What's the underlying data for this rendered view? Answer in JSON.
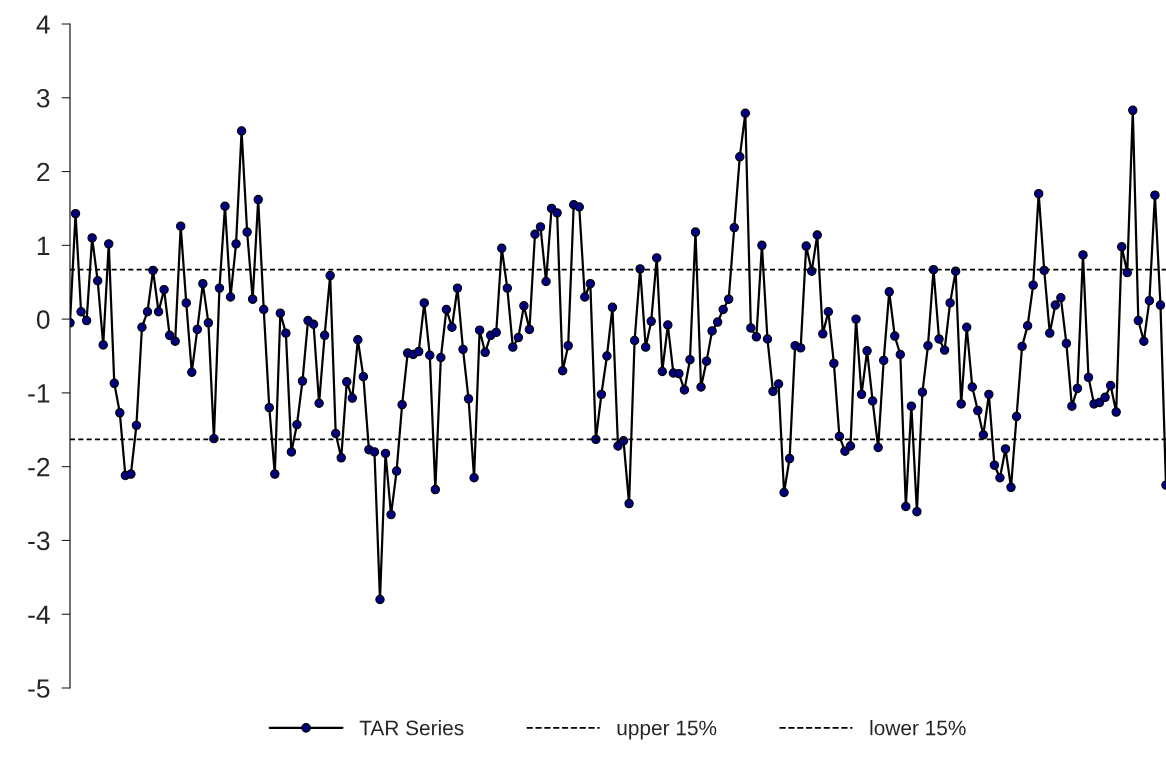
{
  "chart_data": {
    "type": "line",
    "categories": [
      null,
      null,
      null,
      null,
      null,
      null,
      null,
      null,
      null,
      null,
      null,
      null,
      null,
      null,
      null,
      null,
      null,
      null,
      null,
      null,
      null,
      null,
      null,
      null,
      null,
      null,
      null,
      null,
      null,
      null,
      null,
      null,
      null,
      null,
      null,
      null,
      null,
      null,
      null,
      null,
      null,
      null,
      null,
      null,
      null,
      null,
      null,
      null,
      null,
      null,
      null,
      null,
      null,
      null,
      null,
      null,
      null,
      null,
      null,
      null,
      null,
      null,
      null,
      null,
      null,
      null,
      null,
      null,
      null,
      null,
      null,
      null,
      null,
      null,
      null,
      null,
      null,
      null,
      null,
      null,
      null,
      null,
      null,
      null,
      null,
      null,
      null,
      null,
      null,
      null,
      null,
      null,
      null,
      null,
      null,
      null,
      null,
      null,
      null,
      null,
      null,
      null,
      null,
      null,
      null,
      null,
      null,
      null,
      null,
      null,
      null,
      null,
      null,
      null,
      null,
      null,
      null,
      null,
      null,
      null,
      null,
      null,
      null,
      null,
      null,
      null,
      null,
      null,
      null,
      null,
      null,
      null,
      null,
      null,
      null,
      null,
      null,
      null,
      null,
      null,
      null,
      null,
      null,
      null,
      null,
      null,
      null,
      null,
      null,
      null,
      null,
      null,
      null,
      null,
      null,
      null,
      null,
      null,
      null,
      null,
      null,
      null,
      null,
      null,
      null,
      null,
      null,
      null,
      null,
      null,
      null,
      null,
      null,
      null,
      null,
      null,
      null,
      null,
      null,
      null,
      null,
      null,
      null,
      null,
      null,
      null,
      null,
      null,
      null,
      null,
      null,
      null,
      null,
      null,
      null,
      null,
      null,
      null,
      null
    ],
    "series": [
      {
        "name": "TAR Series",
        "color": "#000080",
        "marker": "circle",
        "line_style": "solid",
        "values": [
          -0.05,
          1.43,
          0.1,
          -0.02,
          1.1,
          0.52,
          -0.35,
          1.02,
          -0.87,
          -1.27,
          -2.12,
          -2.1,
          -1.44,
          -0.11,
          0.1,
          0.66,
          0.1,
          0.4,
          -0.22,
          -0.3,
          1.26,
          0.22,
          -0.72,
          -0.14,
          0.48,
          -0.05,
          -1.62,
          0.42,
          1.53,
          0.3,
          1.02,
          2.55,
          1.18,
          0.27,
          1.62,
          0.13,
          -1.2,
          -2.1,
          0.08,
          -0.19,
          -1.8,
          -1.43,
          -0.84,
          -0.02,
          -0.07,
          -1.14,
          -0.22,
          0.59,
          -1.55,
          -1.88,
          -0.85,
          -1.07,
          -0.28,
          -0.78,
          -1.77,
          -1.8,
          -3.8,
          -1.82,
          -2.65,
          -2.06,
          -1.16,
          -0.46,
          -0.48,
          -0.44,
          0.22,
          -0.49,
          -2.31,
          -0.52,
          0.13,
          -0.11,
          0.42,
          -0.41,
          -1.08,
          -2.15,
          -0.15,
          -0.45,
          -0.22,
          -0.18,
          0.96,
          0.42,
          -0.38,
          -0.25,
          0.18,
          -0.14,
          1.15,
          1.25,
          0.51,
          1.5,
          1.44,
          -0.7,
          -0.36,
          1.55,
          1.52,
          0.3,
          0.48,
          -1.63,
          -1.02,
          -0.5,
          0.16,
          -1.72,
          -1.65,
          -2.5,
          -0.29,
          0.68,
          -0.38,
          -0.03,
          0.83,
          -0.71,
          -0.08,
          -0.73,
          -0.74,
          -0.96,
          -0.55,
          1.18,
          -0.92,
          -0.57,
          -0.16,
          -0.04,
          0.13,
          0.27,
          1.24,
          2.2,
          2.79,
          -0.12,
          -0.24,
          1.0,
          -0.27,
          -0.98,
          -0.88,
          -2.35,
          -1.89,
          -0.36,
          -0.39,
          0.99,
          0.65,
          1.14,
          -0.2,
          0.1,
          -0.6,
          -1.59,
          -1.79,
          -1.72,
          0.0,
          -1.02,
          -0.43,
          -1.11,
          -1.74,
          -0.56,
          0.37,
          -0.23,
          -0.48,
          -2.54,
          -1.18,
          -2.61,
          -0.99,
          -0.36,
          0.67,
          -0.27,
          -0.42,
          0.22,
          0.65,
          -1.15,
          -0.11,
          -0.92,
          -1.24,
          -1.57,
          -1.02,
          -1.98,
          -2.15,
          -1.76,
          -2.28,
          -1.32,
          -0.37,
          -0.09,
          0.46,
          1.7,
          0.66,
          -0.19,
          0.19,
          0.29,
          -0.33,
          -1.18,
          -0.94,
          0.87,
          -0.79,
          -1.15,
          -1.13,
          -1.06,
          -0.9,
          -1.26,
          0.98,
          0.63,
          2.83,
          -0.02,
          -0.3,
          0.25,
          1.68,
          0.19,
          -2.25
        ]
      }
    ],
    "ref_lines": [
      {
        "axis": "y",
        "value": 0.67,
        "label": "upper 15%",
        "color": "#000000",
        "line_style": "dashed"
      },
      {
        "axis": "y",
        "value": -1.63,
        "label": "lower 15%",
        "color": "#000000",
        "line_style": "dashed"
      }
    ],
    "ylim": [
      -5,
      4
    ],
    "yticks": [
      -5,
      -4,
      -3,
      -2,
      -1,
      0,
      1,
      2,
      3,
      4
    ],
    "tick_labels": "y",
    "grid": false,
    "legend": "bottom"
  }
}
